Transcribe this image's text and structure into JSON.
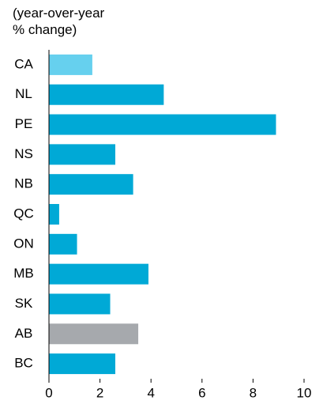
{
  "chart_data": {
    "type": "bar",
    "orientation": "horizontal",
    "ylabel": "(year-over-year % change)",
    "categories": [
      "CA",
      "NL",
      "PE",
      "NS",
      "NB",
      "QC",
      "ON",
      "MB",
      "SK",
      "AB",
      "BC"
    ],
    "values": [
      1.7,
      4.5,
      8.9,
      2.6,
      3.3,
      0.4,
      1.1,
      3.9,
      2.4,
      3.5,
      2.6
    ],
    "colors": [
      "#66d0ee",
      "#00a9d6",
      "#00a9d6",
      "#00a9d6",
      "#00a9d6",
      "#00a9d6",
      "#00a9d6",
      "#00a9d6",
      "#00a9d6",
      "#a6a9ad",
      "#00a9d6"
    ],
    "xlim": [
      0,
      10
    ],
    "xticks": [
      0,
      2,
      4,
      6,
      8,
      10
    ],
    "grid": false
  }
}
